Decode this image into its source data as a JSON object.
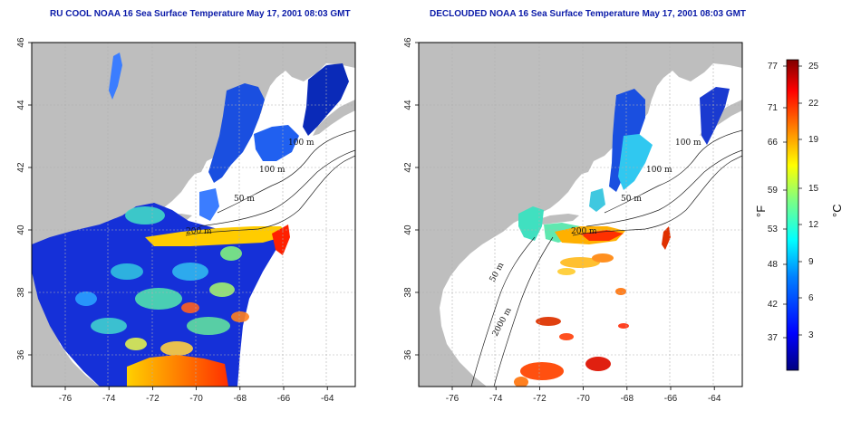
{
  "panels": [
    {
      "title": "RU COOL NOAA 16 Sea Surface Temperature May 17, 2001 08:03 GMT",
      "isobaths": [
        "200 m",
        "100 m",
        "100 m",
        "50 m"
      ]
    },
    {
      "title": "DECLOUDED NOAA 16 Sea Surface Temperature May 17, 2001 08:03 GMT",
      "isobaths": [
        "200 m",
        "100 m",
        "100 m",
        "50 m",
        "50 m",
        "2000 m"
      ]
    }
  ],
  "axes": {
    "x_ticks": [
      "-76",
      "-74",
      "-72",
      "-70",
      "-68",
      "-66",
      "-64"
    ],
    "y_ticks": [
      "46",
      "44",
      "42",
      "40",
      "38",
      "36"
    ]
  },
  "colorbar": {
    "fahrenheit_label": "°F",
    "celsius_label": "°C",
    "fahrenheit_ticks": [
      "77",
      "71",
      "66",
      "59",
      "53",
      "48",
      "42",
      "37"
    ],
    "celsius_ticks": [
      "25",
      "22",
      "19",
      "15",
      "12",
      "9",
      "6",
      "3"
    ],
    "colors": [
      "#000080",
      "#0000ff",
      "#0080ff",
      "#00ffff",
      "#80ff80",
      "#ffff00",
      "#ff8000",
      "#ff0000",
      "#800000"
    ]
  },
  "colors": {
    "land": "#bebebe",
    "grid": "#b0b0b0",
    "title": "#0a1aa8"
  }
}
